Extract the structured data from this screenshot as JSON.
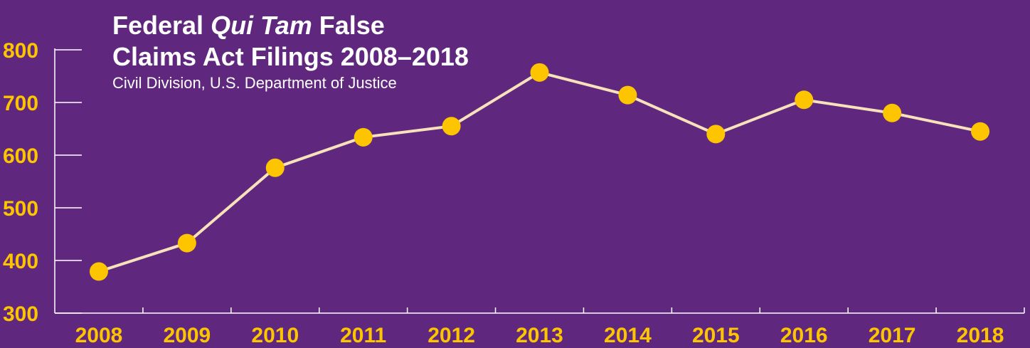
{
  "chart_data": {
    "type": "line",
    "title_parts": [
      "Federal ",
      "Qui Tam",
      " False"
    ],
    "title_line2": "Claims Act Filings 2008–2018",
    "subtitle": "Civil Division, U.S. Department of Justice",
    "x": [
      "2008",
      "2009",
      "2010",
      "2011",
      "2012",
      "2013",
      "2014",
      "2015",
      "2016",
      "2017",
      "2018"
    ],
    "values": [
      379,
      433,
      576,
      634,
      655,
      757,
      714,
      640,
      705,
      680,
      645
    ],
    "ylim": [
      300,
      800
    ],
    "yticks": [
      "300",
      "400",
      "500",
      "600",
      "700",
      "800"
    ],
    "grid": false,
    "colors": {
      "background": "#5f287e",
      "line": "#f7e2bb",
      "points": "#fcc500",
      "tick_labels": "#fcc500",
      "axes": "#ffffff",
      "title": "#ffffff"
    }
  }
}
